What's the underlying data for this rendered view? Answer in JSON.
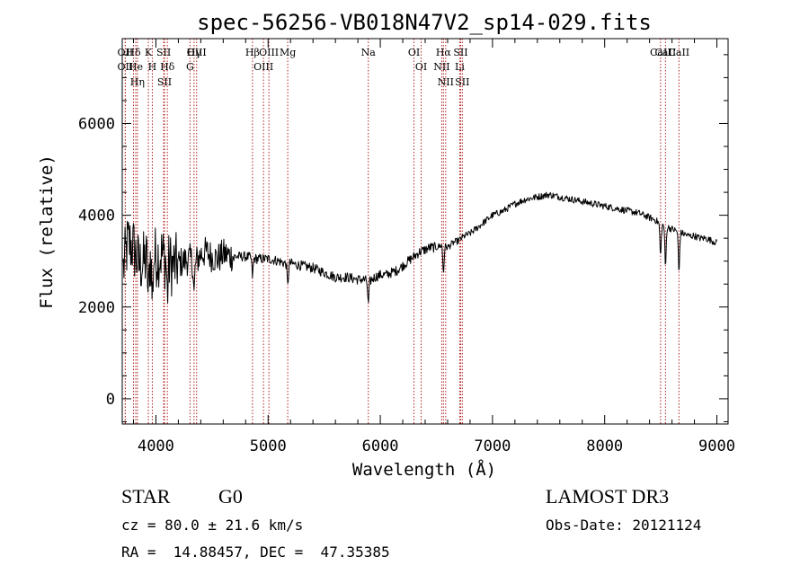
{
  "chart_data": {
    "type": "line",
    "title": "spec-56256-VB018N47V2_sp14-029.fits",
    "xlabel": "Wavelength (Å)",
    "ylabel": "Flux (relative)",
    "xlim": [
      3700,
      9100
    ],
    "ylim": [
      -550,
      7850
    ],
    "xticks": [
      4000,
      5000,
      6000,
      7000,
      8000,
      9000
    ],
    "yticks": [
      0,
      2000,
      4000,
      6000
    ],
    "xtick_labels": [
      "4000",
      "5000",
      "6000",
      "7000",
      "8000",
      "9000"
    ],
    "ytick_labels": [
      "0",
      "2000",
      "4000",
      "6000"
    ],
    "series": [
      {
        "name": "flux",
        "x": [
          3700,
          3750,
          3800,
          3850,
          3900,
          3950,
          4000,
          4050,
          4100,
          4150,
          4200,
          4250,
          4300,
          4350,
          4400,
          4450,
          4500,
          4550,
          4600,
          4700,
          4800,
          4900,
          5000,
          5100,
          5150,
          5200,
          5300,
          5400,
          5500,
          5600,
          5700,
          5800,
          5850,
          5900,
          5950,
          6000,
          6050,
          6100,
          6150,
          6200,
          6250,
          6300,
          6350,
          6400,
          6450,
          6500,
          6550,
          6600,
          6650,
          6700,
          6750,
          6800,
          6900,
          7000,
          7100,
          7200,
          7300,
          7400,
          7500,
          7600,
          7700,
          7800,
          7900,
          8000,
          8100,
          8200,
          8300,
          8400,
          8450,
          8500,
          8550,
          8600,
          8650,
          8700,
          8750,
          8800,
          8850,
          8900,
          8950,
          9000
        ],
        "y": [
          2700,
          3400,
          3300,
          2900,
          3000,
          3100,
          3100,
          3150,
          3000,
          2900,
          2950,
          3000,
          3050,
          2950,
          3150,
          3200,
          3100,
          3050,
          3150,
          3100,
          3100,
          3050,
          3050,
          3000,
          2950,
          2950,
          2900,
          2850,
          2750,
          2650,
          2650,
          2600,
          2600,
          2550,
          2650,
          2700,
          2700,
          2750,
          2800,
          2900,
          3000,
          3100,
          3200,
          3250,
          3300,
          3300,
          3350,
          3300,
          3400,
          3450,
          3550,
          3600,
          3800,
          4000,
          4100,
          4250,
          4350,
          4400,
          4450,
          4400,
          4350,
          4300,
          4250,
          4200,
          4150,
          4100,
          4050,
          3950,
          3900,
          3800,
          3750,
          3700,
          3650,
          3600,
          3550,
          3550,
          3500,
          3500,
          3450,
          3400
        ]
      }
    ],
    "line_labels": [
      {
        "label": "Hδ",
        "wave": 3800
      },
      {
        "label": "OII",
        "wave": 3727
      },
      {
        "label": "OII",
        "wave": 3727
      },
      {
        "label": "He",
        "wave": 3820
      },
      {
        "label": "Hη",
        "wave": 3835
      },
      {
        "label": "K",
        "wave": 3933
      },
      {
        "label": "SII",
        "wave": 4069
      },
      {
        "label": "H",
        "wave": 3968
      },
      {
        "label": "Hδ",
        "wave": 4102
      },
      {
        "label": "SII",
        "wave": 4076
      },
      {
        "label": "OIII",
        "wave": 4363
      },
      {
        "label": "Hγ",
        "wave": 4340
      },
      {
        "label": "G",
        "wave": 4304
      },
      {
        "label": "OIII",
        "wave": 5007
      },
      {
        "label": "OIII",
        "wave": 4959
      },
      {
        "label": "Hβ",
        "wave": 4861
      },
      {
        "label": "Mg",
        "wave": 5175
      },
      {
        "label": "Na",
        "wave": 5893
      },
      {
        "label": "OI",
        "wave": 6300
      },
      {
        "label": "OI",
        "wave": 6364
      },
      {
        "label": "Hα",
        "wave": 6563
      },
      {
        "label": "SII",
        "wave": 6716
      },
      {
        "label": "NII",
        "wave": 6548
      },
      {
        "label": "Li",
        "wave": 6708
      },
      {
        "label": "NII",
        "wave": 6583
      },
      {
        "label": "SII",
        "wave": 6731
      },
      {
        "label": "CaII",
        "wave": 8542
      },
      {
        "label": "CaII",
        "wave": 8498
      },
      {
        "label": "CaII",
        "wave": 8662
      }
    ]
  },
  "info": {
    "object_class": "STAR",
    "subclass": "G0",
    "survey": "LAMOST DR3",
    "cz": "cz = 80.0 ± 21.6 km/s",
    "obs_date": "Obs-Date: 20121124",
    "coords": "RA =  14.88457, DEC =  47.35385"
  },
  "colors": {
    "line_marker": "#b22222",
    "spectrum": "#000000"
  }
}
